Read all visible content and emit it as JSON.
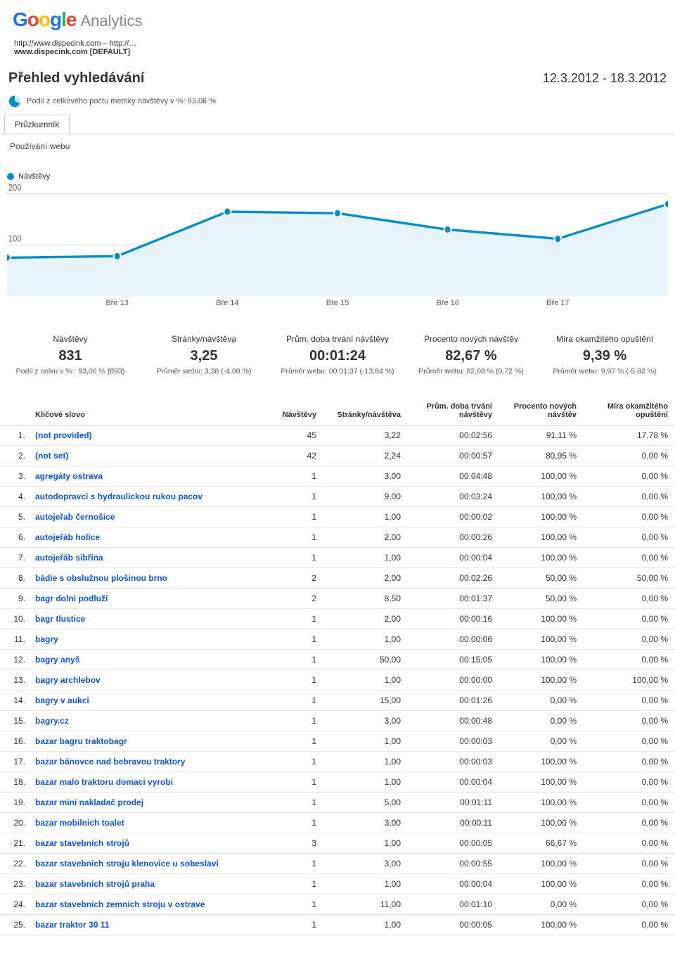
{
  "logo": {
    "google": "Google",
    "analytics": "Analytics"
  },
  "breadcrumb": {
    "line1": "http://www.dispecink.com – http://…",
    "line2": "www.dispecink.com [DEFAULT]"
  },
  "page_title": "Přehled vyhledávání",
  "date_range": "12.3.2012 - 18.3.2012",
  "share_text": "Podíl z celkového počtu metriky návštěvy v %: 93,06 %",
  "tab_explorer": "Průzkumník",
  "subtab_usage": "Používání webu",
  "chart": {
    "type": "line",
    "legend_label": "Návštěvy",
    "y_ticks": [
      100,
      200
    ],
    "ylim": [
      0,
      220
    ],
    "x_labels": [
      "Bře 13",
      "Bře 14",
      "Bře 15",
      "Bře 16",
      "Bře 17"
    ],
    "points_y": [
      75,
      78,
      165,
      162,
      130,
      112,
      180
    ],
    "line_color": "#058dc7",
    "fill_color": "#e6f4fb",
    "grid_color": "#d9d9d9",
    "marker_fill": "#058dc7",
    "marker_stroke": "#ffffff",
    "line_width": 3,
    "marker_radius": 5
  },
  "metrics": [
    {
      "label": "Návštěvy",
      "value": "831",
      "sub": "Podíl z celku v %:: 93,06 % (893)"
    },
    {
      "label": "Stránky/návštěva",
      "value": "3,25",
      "sub": "Průměr webu: 3,38 (-4,00 %)"
    },
    {
      "label": "Prům. doba trvání návštěvy",
      "value": "00:01:24",
      "sub": "Průměr webu: 00:01:37 (-13,84 %)"
    },
    {
      "label": "Procento nových návštěv",
      "value": "82,67 %",
      "sub": "Průměr webu: 82,08 % (0,72 %)"
    },
    {
      "label": "Míra okamžitého opuštění",
      "value": "9,39 %",
      "sub": "Průměr webu: 9,97 % (-5,82 %)"
    }
  ],
  "table": {
    "headers": {
      "keyword": "Klíčové slovo",
      "visits": "Návštěvy",
      "pages": "Stránky/návštěva",
      "duration": "Prům. doba trvání návštěvy",
      "new": "Procento nových návštěv",
      "bounce": "Míra okamžitého opuštění"
    },
    "rows": [
      {
        "n": "1.",
        "kw": "(not provided)",
        "v": "45",
        "p": "3,22",
        "d": "00:02:56",
        "nw": "91,11 %",
        "b": "17,78 %"
      },
      {
        "n": "2.",
        "kw": "(not set)",
        "v": "42",
        "p": "2,24",
        "d": "00:00:57",
        "nw": "80,95 %",
        "b": "0,00 %"
      },
      {
        "n": "3.",
        "kw": "agregáty ostrava",
        "v": "1",
        "p": "3,00",
        "d": "00:04:48",
        "nw": "100,00 %",
        "b": "0,00 %"
      },
      {
        "n": "4.",
        "kw": "autodopravci s hydraulickou rukou pacov",
        "v": "1",
        "p": "9,00",
        "d": "00:03:24",
        "nw": "100,00 %",
        "b": "0,00 %"
      },
      {
        "n": "5.",
        "kw": "autojeřab černošice",
        "v": "1",
        "p": "1,00",
        "d": "00:00:02",
        "nw": "100,00 %",
        "b": "0,00 %"
      },
      {
        "n": "6.",
        "kw": "autojeřáb holice",
        "v": "1",
        "p": "2,00",
        "d": "00:00:26",
        "nw": "100,00 %",
        "b": "0,00 %"
      },
      {
        "n": "7.",
        "kw": "autojeřáb sibřina",
        "v": "1",
        "p": "1,00",
        "d": "00:00:04",
        "nw": "100,00 %",
        "b": "0,00 %"
      },
      {
        "n": "8.",
        "kw": "bádie s obslužnou plošinou brno",
        "v": "2",
        "p": "2,00",
        "d": "00:02:26",
        "nw": "50,00 %",
        "b": "50,00 %"
      },
      {
        "n": "9.",
        "kw": "bagr dolni podluží",
        "v": "2",
        "p": "8,50",
        "d": "00:01:37",
        "nw": "50,00 %",
        "b": "0,00 %"
      },
      {
        "n": "10.",
        "kw": "bagr tlustice",
        "v": "1",
        "p": "2,00",
        "d": "00:00:16",
        "nw": "100,00 %",
        "b": "0,00 %"
      },
      {
        "n": "11.",
        "kw": "bagry",
        "v": "1",
        "p": "1,00",
        "d": "00:00:06",
        "nw": "100,00 %",
        "b": "0,00 %"
      },
      {
        "n": "12.",
        "kw": "bagry anyš",
        "v": "1",
        "p": "50,00",
        "d": "00:15:05",
        "nw": "100,00 %",
        "b": "0,00 %"
      },
      {
        "n": "13.",
        "kw": "bagry archlebov",
        "v": "1",
        "p": "1,00",
        "d": "00:00:00",
        "nw": "100,00 %",
        "b": "100,00 %"
      },
      {
        "n": "14.",
        "kw": "bagry v aukci",
        "v": "1",
        "p": "15,00",
        "d": "00:01:26",
        "nw": "0,00 %",
        "b": "0,00 %"
      },
      {
        "n": "15.",
        "kw": "bagry.cz",
        "v": "1",
        "p": "3,00",
        "d": "00:00:48",
        "nw": "0,00 %",
        "b": "0,00 %"
      },
      {
        "n": "16.",
        "kw": "bazar bagru traktobagr",
        "v": "1",
        "p": "1,00",
        "d": "00:00:03",
        "nw": "0,00 %",
        "b": "0,00 %"
      },
      {
        "n": "17.",
        "kw": "bazar bánovce nad bebravou traktory",
        "v": "1",
        "p": "1,00",
        "d": "00:00:03",
        "nw": "100,00 %",
        "b": "0,00 %"
      },
      {
        "n": "18.",
        "kw": "bazar malo traktoru domaci vyrobi",
        "v": "1",
        "p": "1,00",
        "d": "00:00:04",
        "nw": "100,00 %",
        "b": "0,00 %"
      },
      {
        "n": "19.",
        "kw": "bazar mini nakladač prodej",
        "v": "1",
        "p": "5,00",
        "d": "00:01:11",
        "nw": "100,00 %",
        "b": "0,00 %"
      },
      {
        "n": "20.",
        "kw": "bazar mobilnich toalet",
        "v": "1",
        "p": "3,00",
        "d": "00:00:11",
        "nw": "100,00 %",
        "b": "0,00 %"
      },
      {
        "n": "21.",
        "kw": "bazar stavebních strojů",
        "v": "3",
        "p": "1,00",
        "d": "00:00:05",
        "nw": "66,67 %",
        "b": "0,00 %"
      },
      {
        "n": "22.",
        "kw": "bazar stavebnich stroju klenovice u sobeslavi",
        "v": "1",
        "p": "3,00",
        "d": "00:00:55",
        "nw": "100,00 %",
        "b": "0,00 %"
      },
      {
        "n": "23.",
        "kw": "bazar stavebních strojů praha",
        "v": "1",
        "p": "1,00",
        "d": "00:00:04",
        "nw": "100,00 %",
        "b": "0,00 %"
      },
      {
        "n": "24.",
        "kw": "bazar stavebnich zemnich stroju v ostrave",
        "v": "1",
        "p": "11,00",
        "d": "00:01:10",
        "nw": "0,00 %",
        "b": "0,00 %"
      },
      {
        "n": "25.",
        "kw": "bazar traktor 30 11",
        "v": "1",
        "p": "1,00",
        "d": "00:00:05",
        "nw": "100,00 %",
        "b": "0,00 %"
      }
    ]
  }
}
